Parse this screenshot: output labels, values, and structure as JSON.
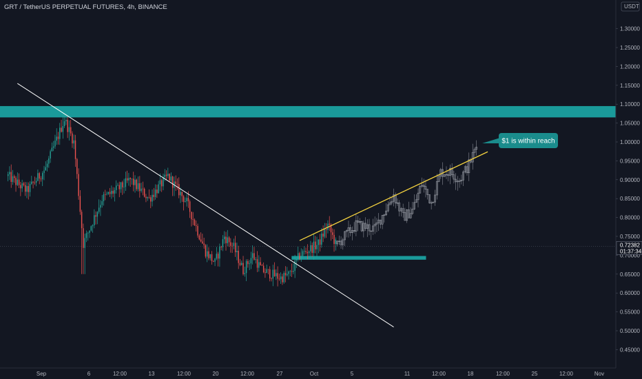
{
  "header": {
    "title": "GRT / TetherUS PERPETUAL FUTURES, 4h, BINANCE",
    "currency": "USDT"
  },
  "price_badge": {
    "price": "0.72382",
    "countdown": "01:37:34"
  },
  "annotation": {
    "text": "$1 is within reach"
  },
  "colors": {
    "background": "#131722",
    "up": "#26a69a",
    "down": "#ef5350",
    "zone": "#1a9a9a",
    "trendline_down": "#ffffff",
    "trendline_up": "#f5d33f",
    "projection": "#b2b5be"
  },
  "chart_data": {
    "type": "candlestick",
    "y_axis": {
      "ticks": [
        0.45,
        0.5,
        0.55,
        0.6,
        0.65,
        0.7,
        0.75,
        0.8,
        0.85,
        0.9,
        0.95,
        1.0,
        1.05,
        1.1,
        1.15,
        1.2,
        1.25,
        1.3
      ],
      "tick_labels": [
        "0.45000",
        "0.50000",
        "0.55000",
        "0.60000",
        "0.65000",
        "0.70000",
        "0.75000",
        "0.80000",
        "0.85000",
        "0.90000",
        "0.95000",
        "1.00000",
        "1.05000",
        "1.10000",
        "1.15000",
        "1.20000",
        "1.25000",
        "1.30000"
      ],
      "ylim": [
        0.41,
        1.36
      ]
    },
    "x_axis": {
      "ticks": [
        "Sep",
        "6",
        "12:00",
        "13",
        "12:00",
        "20",
        "12:00",
        "27",
        "Oct",
        "5",
        "11",
        "12:00",
        "18",
        "12:00",
        "25",
        "12:00",
        "Nov"
      ]
    },
    "resistance_zone": [
      1.065,
      1.095
    ],
    "support_zone": [
      0.69,
      0.698
    ],
    "current_price": 0.72382,
    "trendline_down": {
      "start": [
        "Sep 1",
        1.155
      ],
      "end": [
        "Oct 11",
        0.51
      ]
    },
    "trendline_up": {
      "start": [
        "Oct 1",
        0.739
      ],
      "end": [
        "Oct 21",
        0.974
      ]
    },
    "anchor_path": [
      [
        "Aug 31",
        0.91
      ],
      [
        "Sep 2",
        0.87
      ],
      [
        "Sep 4",
        0.93
      ],
      [
        "Sep 6",
        1.06
      ],
      [
        "Sep 7",
        1.0
      ],
      [
        "Sep 8",
        0.73
      ],
      [
        "Sep 10",
        0.85
      ],
      [
        "Sep 12",
        0.88
      ],
      [
        "Sep 13",
        0.9
      ],
      [
        "Sep 15",
        0.85
      ],
      [
        "Sep 17",
        0.91
      ],
      [
        "Sep 19",
        0.84
      ],
      [
        "Sep 21",
        0.71
      ],
      [
        "Sep 22",
        0.68
      ],
      [
        "Sep 23",
        0.75
      ],
      [
        "Sep 24",
        0.72
      ],
      [
        "Sep 25",
        0.66
      ],
      [
        "Sep 26",
        0.7
      ],
      [
        "Sep 27",
        0.66
      ],
      [
        "Sep 29",
        0.64
      ],
      [
        "Sep 30",
        0.65
      ],
      [
        "Oct 1",
        0.7
      ],
      [
        "Oct 3",
        0.73
      ],
      [
        "Oct 4",
        0.78
      ],
      [
        "Oct 5",
        0.72
      ]
    ],
    "projection_path": [
      [
        "Oct 5",
        0.73
      ],
      [
        "Oct 7",
        0.78
      ],
      [
        "Oct 9",
        0.77
      ],
      [
        "Oct 11",
        0.86
      ],
      [
        "Oct 12",
        0.8
      ],
      [
        "Oct 13",
        0.82
      ],
      [
        "Oct 14",
        0.89
      ],
      [
        "Oct 15",
        0.84
      ],
      [
        "Oct 16",
        0.92
      ],
      [
        "Oct 17",
        0.92
      ],
      [
        "Oct 18",
        0.9
      ],
      [
        "Oct 19",
        0.94
      ],
      [
        "Oct 20",
        1.0
      ]
    ]
  }
}
